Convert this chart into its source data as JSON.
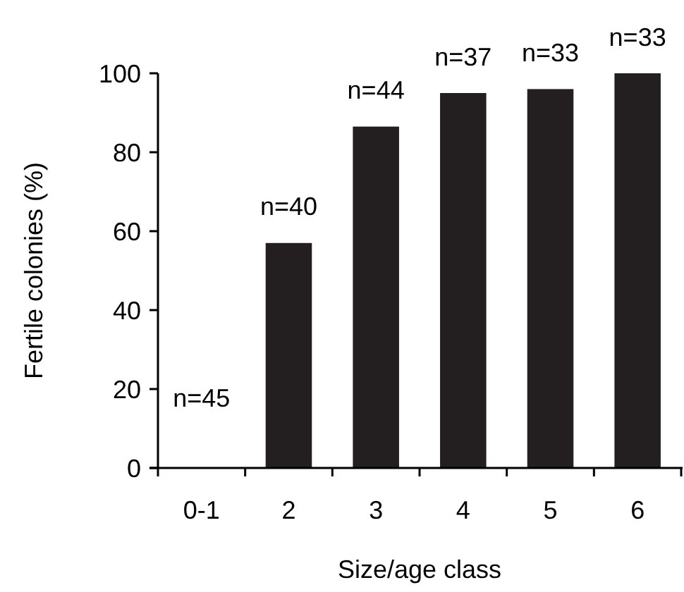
{
  "chart_data": {
    "type": "bar",
    "xlabel": "Size/age class",
    "ylabel": "Fertile colonies (%)",
    "categories": [
      "0-1",
      "2",
      "3",
      "4",
      "5",
      "6"
    ],
    "values": [
      0,
      57,
      86.5,
      95,
      96,
      100
    ],
    "color": "#231f20",
    "ylim": [
      0,
      100
    ],
    "yticks": [
      0,
      20,
      40,
      60,
      80,
      100
    ],
    "annotations": [
      {
        "text": "n=45",
        "x": "0-1",
        "y": 0
      },
      {
        "text": "n=40",
        "x": "2",
        "y": 57
      },
      {
        "text": "n=44",
        "x": "3",
        "y": 86.5
      },
      {
        "text": "n=37",
        "x": "4",
        "y": 95
      },
      {
        "text": "n=33",
        "x": "5",
        "y": 96
      },
      {
        "text": "n=33",
        "x": "6",
        "y": 100
      }
    ]
  }
}
